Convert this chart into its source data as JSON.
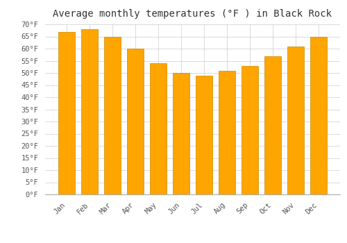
{
  "title": "Average monthly temperatures (°F ) in Black Rock",
  "months": [
    "Jan",
    "Feb",
    "Mar",
    "Apr",
    "May",
    "Jun",
    "Jul",
    "Aug",
    "Sep",
    "Oct",
    "Nov",
    "Dec"
  ],
  "values": [
    67,
    68,
    65,
    60,
    54,
    50,
    49,
    51,
    53,
    57,
    61,
    65
  ],
  "bar_color_top": "#FFA500",
  "bar_color_bottom": "#FFD060",
  "bar_edge_color": "#CC8800",
  "background_color": "#FFFFFF",
  "grid_color": "#CCCCCC",
  "ylim": [
    0,
    70
  ],
  "ytick_step": 5,
  "title_fontsize": 10,
  "tick_fontsize": 7.5,
  "font_family": "monospace"
}
